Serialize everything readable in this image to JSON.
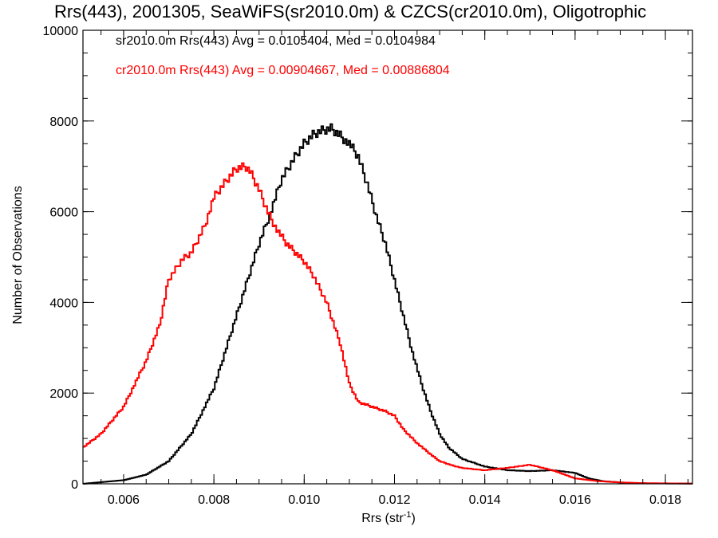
{
  "chart_data": {
    "type": "line",
    "title": "Rrs(443), 2001305, SeaWiFS(sr2010.0m) & CZCS(cr2010.0m), Oligotrophic",
    "xlabel": "Rrs (str",
    "xlabel_sup": "-1",
    "xlabel_end": ")",
    "ylabel": "Number of Observations",
    "xlim": [
      0.0051,
      0.0186
    ],
    "ylim": [
      0,
      10000
    ],
    "xticks": [
      {
        "v": 0.006,
        "label": "0.006"
      },
      {
        "v": 0.008,
        "label": "0.008"
      },
      {
        "v": 0.01,
        "label": "0.010"
      },
      {
        "v": 0.012,
        "label": "0.012"
      },
      {
        "v": 0.014,
        "label": "0.014"
      },
      {
        "v": 0.016,
        "label": "0.016"
      },
      {
        "v": 0.018,
        "label": "0.018"
      }
    ],
    "yticks": [
      {
        "v": 0,
        "label": "0"
      },
      {
        "v": 2000,
        "label": "2000"
      },
      {
        "v": 4000,
        "label": "4000"
      },
      {
        "v": 6000,
        "label": "6000"
      },
      {
        "v": 8000,
        "label": "8000"
      },
      {
        "v": 10000,
        "label": "10000"
      }
    ],
    "step": "histogram",
    "series": [
      {
        "name": "sr2010.0m Rrs(443) Avg = 0.0105404, Med = 0.0104984",
        "color": "#000000",
        "x": [
          0.0051,
          0.006,
          0.0065,
          0.007,
          0.0075,
          0.008,
          0.0085,
          0.009,
          0.0093,
          0.0095,
          0.0098,
          0.01,
          0.0102,
          0.0104,
          0.0106,
          0.0108,
          0.011,
          0.0112,
          0.0114,
          0.0116,
          0.0118,
          0.012,
          0.0122,
          0.0124,
          0.0126,
          0.0128,
          0.013,
          0.0132,
          0.0135,
          0.0138,
          0.014,
          0.0145,
          0.015,
          0.0155,
          0.016,
          0.0163,
          0.0166,
          0.017,
          0.0175,
          0.0186
        ],
        "y": [
          0,
          80,
          200,
          500,
          1100,
          2100,
          3700,
          5300,
          6100,
          6700,
          7200,
          7500,
          7700,
          7800,
          7850,
          7700,
          7500,
          7200,
          6600,
          5900,
          5300,
          4500,
          3700,
          2900,
          2200,
          1600,
          1100,
          800,
          550,
          450,
          380,
          300,
          280,
          300,
          240,
          120,
          60,
          30,
          10,
          5
        ]
      },
      {
        "name": "cr2010.0m Rrs(443) Avg = 0.00904667, Med = 0.00886804",
        "color": "#ff0000",
        "x": [
          0.0051,
          0.0055,
          0.006,
          0.0065,
          0.0068,
          0.007,
          0.0073,
          0.0075,
          0.0078,
          0.008,
          0.0083,
          0.0085,
          0.0087,
          0.0088,
          0.009,
          0.0092,
          0.0094,
          0.0096,
          0.0098,
          0.01,
          0.0102,
          0.0105,
          0.0108,
          0.011,
          0.0112,
          0.0115,
          0.0118,
          0.012,
          0.0122,
          0.0125,
          0.0128,
          0.013,
          0.0133,
          0.0135,
          0.014,
          0.0145,
          0.015,
          0.0155,
          0.016,
          0.0165,
          0.017,
          0.0175,
          0.0186
        ],
        "y": [
          800,
          1100,
          1700,
          2700,
          3500,
          4500,
          4950,
          5100,
          5700,
          6300,
          6700,
          6950,
          7000,
          6900,
          6500,
          6000,
          5600,
          5300,
          5100,
          4900,
          4600,
          4000,
          3100,
          2200,
          1800,
          1700,
          1600,
          1500,
          1200,
          900,
          650,
          500,
          400,
          350,
          300,
          350,
          420,
          300,
          120,
          60,
          30,
          15,
          5
        ]
      }
    ]
  }
}
